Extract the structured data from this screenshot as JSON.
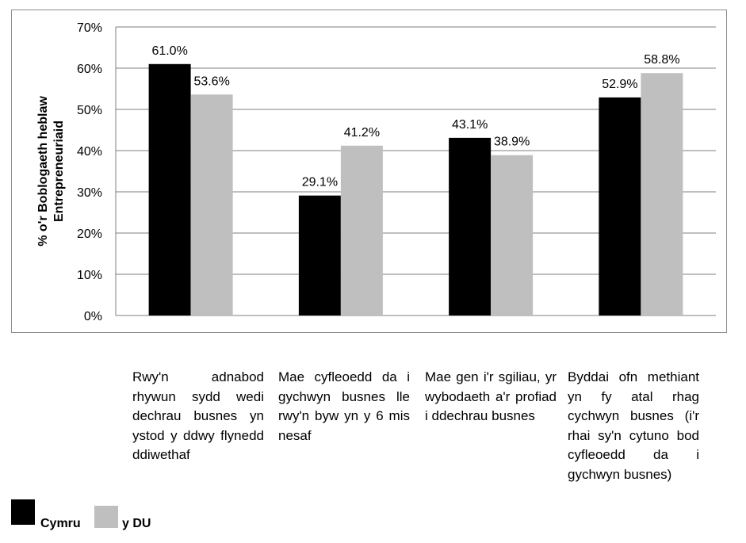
{
  "chart_data": {
    "type": "bar",
    "title": "",
    "xlabel": "",
    "ylabel": "% o'r Boblogaeth heblaw Entrepreneuriaid",
    "ylabel_lines": [
      "% o'r Boblogaeth heblaw",
      "Entrepreneuriaid"
    ],
    "ylim": [
      0,
      70
    ],
    "yticks": [
      0,
      10,
      20,
      30,
      40,
      50,
      60,
      70
    ],
    "ytick_labels": [
      "0%",
      "10%",
      "20%",
      "30%",
      "40%",
      "50%",
      "60%",
      "70%"
    ],
    "grid": true,
    "legend_position": "bottom-left",
    "categories": [
      "Rwy'n adnabod rhywun sydd wedi dechrau busnes yn ystod y ddwy flynedd ddiwethaf",
      "Mae cyfleoedd da i gychwyn busnes lle rwy'n byw yn y 6 mis nesaf",
      "Mae gen i'r sgiliau, yr wybodaeth a'r profiad i ddechrau busnes",
      "Byddai ofn methiant yn fy atal rhag cychwyn busnes (i'r rhai sy'n cytuno bod cyfleoedd da i gychwyn busnes)"
    ],
    "series": [
      {
        "name": "Cymru",
        "color": "#000000",
        "values": [
          61.0,
          29.1,
          43.1,
          52.9
        ],
        "data_labels": [
          "61.0%",
          "29.1%",
          "43.1%",
          "52.9%"
        ]
      },
      {
        "name": "y DU",
        "color": "#bfbfbf",
        "values": [
          53.6,
          41.2,
          38.9,
          58.8
        ],
        "data_labels": [
          "53.6%",
          "41.2%",
          "38.9%",
          "58.8%"
        ]
      }
    ]
  }
}
